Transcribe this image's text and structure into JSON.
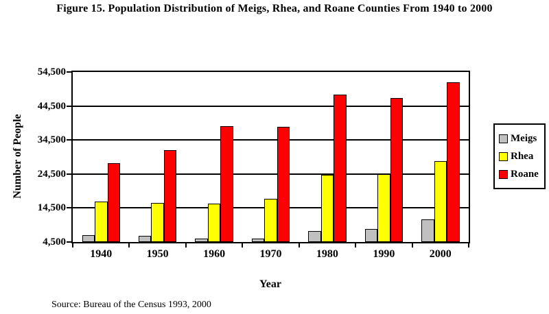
{
  "title": "Figure 15. Population Distribution of Meigs, Rhea, and Roane Counties From 1940 to 2000",
  "source_note": "Source:  Bureau of the Census 1993, 2000",
  "chart_data": {
    "type": "bar",
    "title": "Figure 15. Population Distribution of Meigs, Rhea, and Roane Counties From 1940 to 2000",
    "xlabel": "Year",
    "ylabel": "Number of People",
    "categories": [
      "1940",
      "1950",
      "1960",
      "1970",
      "1980",
      "1990",
      "2000"
    ],
    "series": [
      {
        "name": "Meigs",
        "color": "#C0C0C0",
        "values": [
          6600,
          6400,
          5500,
          5600,
          7700,
          8300,
          11200
        ]
      },
      {
        "name": "Rhea",
        "color": "#FFFF00",
        "values": [
          16400,
          16100,
          15800,
          17300,
          24200,
          24400,
          28200
        ]
      },
      {
        "name": "Roane",
        "color": "#FF0000",
        "values": [
          27600,
          31500,
          38600,
          38400,
          47900,
          46800,
          51400
        ]
      }
    ],
    "ylim": [
      4500,
      54500
    ],
    "ytick_values": [
      4500,
      14500,
      24500,
      34500,
      44500,
      54500
    ],
    "ytick_labels": [
      "4,500",
      "14,500",
      "24,500",
      "34,500",
      "44,500",
      "54,500"
    ],
    "grid": true,
    "legend_position": "right",
    "bar_border_color": "#000000",
    "axis_color": "#000000"
  }
}
